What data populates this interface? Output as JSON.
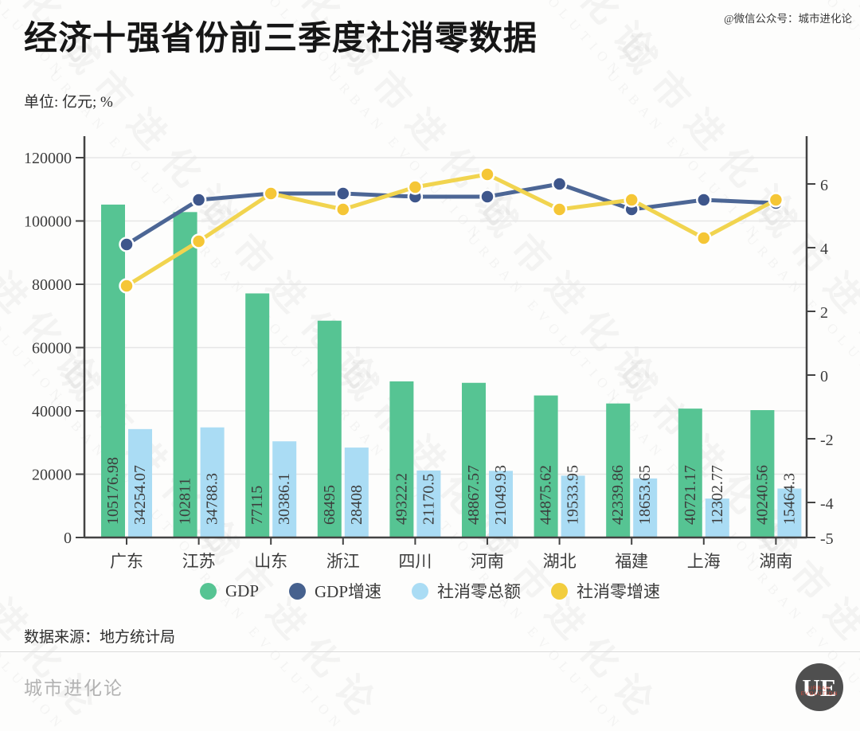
{
  "header": {
    "title": "经济十强省份前三季度社消零数据",
    "credit": "@微信公众号：城市进化论",
    "unit": "单位: 亿元; %"
  },
  "chart_data": {
    "type": "bar+line combo",
    "categories": [
      "广东",
      "江苏",
      "山东",
      "浙江",
      "四川",
      "河南",
      "湖北",
      "福建",
      "上海",
      "湖南"
    ],
    "series": [
      {
        "name": "GDP",
        "kind": "bar",
        "axis": "left",
        "color": "#56c493",
        "label_color": "#265c4d",
        "labels": [
          "105176.98",
          "102811",
          "77115",
          "68495",
          "49322.2",
          "48867.57",
          "44875.62",
          "42339.86",
          "40721.17",
          "40240.56"
        ]
      },
      {
        "name": "社消零总额",
        "kind": "bar",
        "axis": "left",
        "color": "#aadcf4",
        "label_color": "#3a5878",
        "labels": [
          "34254.07",
          "34788.3",
          "30386.1",
          "28408",
          "21170.5",
          "21049.93",
          "19533.95",
          "18653.65",
          "12302.77",
          "15464.3"
        ]
      },
      {
        "name": "GDP增速",
        "kind": "line",
        "axis": "right",
        "color": "#4c6695",
        "marker_color": "#3e568b",
        "values": [
          4.1,
          5.5,
          5.7,
          5.7,
          5.6,
          5.6,
          6.0,
          5.2,
          5.5,
          5.4
        ]
      },
      {
        "name": "社消零增速",
        "kind": "line",
        "axis": "right",
        "color": "#f1d44f",
        "marker_color": "#f5c636",
        "values": [
          2.8,
          4.2,
          5.7,
          5.2,
          5.9,
          6.3,
          5.2,
          5.5,
          4.3,
          5.5
        ]
      }
    ],
    "left_axis": {
      "ticks": [
        0,
        20000,
        40000,
        60000,
        80000,
        100000,
        120000
      ],
      "range": [
        0,
        127000
      ]
    },
    "right_axis": {
      "ticks": [
        6,
        4,
        2,
        0,
        -2,
        -4,
        -5
      ],
      "range": [
        -5,
        7.6
      ]
    },
    "grid": "horizontal",
    "legend_position": "bottom"
  },
  "legend": {
    "items": [
      {
        "label": "GDP",
        "color": "#56c493"
      },
      {
        "label": "GDP增速",
        "color": "#46618e"
      },
      {
        "label": "社消零总额",
        "color": "#aadcf4"
      },
      {
        "label": "社消零增速",
        "color": "#f2cd3e"
      }
    ]
  },
  "footer": {
    "source": "数据来源：地方统计局",
    "brand": "城市进化论",
    "logo_text": "UE",
    "logo_sub": "URBAN EVOLUTION"
  },
  "watermark": {
    "line1": "城市进化论",
    "line2": "URBAN EVOLUTION"
  }
}
